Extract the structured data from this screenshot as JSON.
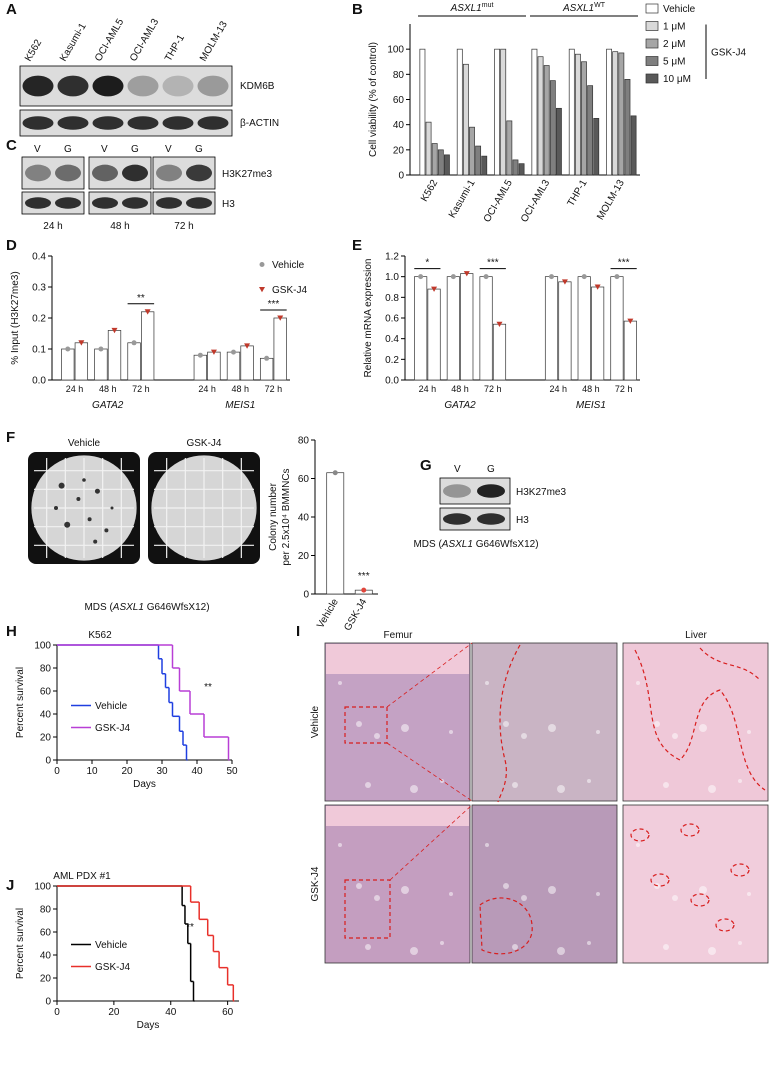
{
  "panel_labels": [
    "A",
    "B",
    "C",
    "D",
    "E",
    "F",
    "G",
    "H",
    "I",
    "J"
  ],
  "blot_a": {
    "lanes": [
      "K562",
      "Kasumi-1",
      "OCI-AML5",
      "OCI-AML3",
      "THP-1",
      "MOLM-13"
    ],
    "rows": [
      "KDM6B",
      "β-ACTIN"
    ]
  },
  "blot_c": {
    "lanes": [
      "V",
      "G",
      "V",
      "G",
      "V",
      "G"
    ],
    "rows": [
      "H3K27me3",
      "H3"
    ],
    "times": [
      "24 h",
      "48 h",
      "72 h"
    ]
  },
  "plates_f": {
    "labels": [
      "Vehicle",
      "GSK-J4"
    ],
    "caption": [
      "MDS (",
      "ASXL1",
      " G646WfsX12)"
    ]
  },
  "blot_g": {
    "lanes": [
      "V",
      "G"
    ],
    "rows": [
      "H3K27me3",
      "H3"
    ],
    "caption": [
      "MDS (",
      "ASXL1",
      " G646WfsX12)"
    ]
  },
  "histology_i": {
    "columns": [
      "Femur",
      "Liver"
    ],
    "rows": [
      "Vehicle",
      "GSK-J4"
    ]
  },
  "chart_data": [
    {
      "type": "bar",
      "ylabel": "Cell viability (% of control)",
      "categories": [
        "K562",
        "Kasumi-1",
        "OCI-AML5",
        "OCI-AML3",
        "THP-1",
        "MOLM-13"
      ],
      "series": [
        {
          "name": "Vehicle",
          "color": "#ffffff",
          "values": [
            100,
            100,
            100,
            100,
            100,
            100
          ]
        },
        {
          "name": "1 μM",
          "color": "#d9d9d9",
          "values": [
            42,
            88,
            100,
            94,
            96,
            98
          ]
        },
        {
          "name": "2 μM",
          "color": "#a6a6a6",
          "values": [
            25,
            38,
            43,
            87,
            90,
            97
          ]
        },
        {
          "name": "5 μM",
          "color": "#7f7f7f",
          "values": [
            20,
            23,
            12,
            75,
            71,
            76
          ]
        },
        {
          "name": "10 μM",
          "color": "#595959",
          "values": [
            16,
            15,
            9,
            53,
            45,
            47
          ]
        }
      ],
      "ylim": [
        0,
        120
      ],
      "yticks": [
        0,
        20,
        40,
        60,
        80,
        100
      ],
      "group_labels": [
        {
          "text": "ASXL1",
          "sup": "mut"
        },
        {
          "text": "ASXL1",
          "sup": "WT"
        }
      ],
      "legend_group": "GSK-J4"
    },
    {
      "type": "bar",
      "ylabel": "% Input (H3K27me3)",
      "categories": [
        "24 h",
        "48 h",
        "72 h",
        "24 h",
        "48 h",
        "72 h"
      ],
      "groups": [
        "GATA2",
        "MEIS1"
      ],
      "bar_fill": "#ffffff",
      "legend": true,
      "series": [
        {
          "name": "Vehicle",
          "color": "#999999",
          "marker": "circle",
          "values": [
            0.1,
            0.1,
            0.12,
            0.08,
            0.09,
            0.07
          ]
        },
        {
          "name": "GSK-J4",
          "color": "#c0392b",
          "marker": "triangle",
          "values": [
            0.12,
            0.16,
            0.22,
            0.09,
            0.11,
            0.2
          ]
        }
      ],
      "ylim": [
        0,
        0.4
      ],
      "yticks": [
        {
          "value": 0,
          "label": "0.0"
        },
        0.1,
        0.2,
        0.3,
        0.4
      ],
      "significance": [
        null,
        null,
        "**",
        null,
        null,
        "***"
      ]
    },
    {
      "type": "bar",
      "ylabel": "Relative mRNA expression",
      "categories": [
        "24 h",
        "48 h",
        "72 h",
        "24 h",
        "48 h",
        "72 h"
      ],
      "groups": [
        "GATA2",
        "MEIS1"
      ],
      "bar_fill": "#ffffff",
      "legend": false,
      "series": [
        {
          "color": "#999999",
          "marker": "circle",
          "values": [
            1,
            1,
            1,
            1,
            1,
            1
          ]
        },
        {
          "color": "#c0392b",
          "marker": "triangle",
          "values": [
            0.88,
            1.03,
            0.54,
            0.95,
            0.9,
            0.57
          ]
        }
      ],
      "ylim": [
        0,
        1.2
      ],
      "yticks": [
        {
          "value": 0,
          "label": "0.0"
        },
        0.2,
        0.4,
        0.6,
        0.8,
        {
          "value": 1,
          "label": "1.0"
        },
        1.2
      ],
      "significance": [
        "*",
        null,
        "***",
        null,
        null,
        "***"
      ]
    },
    {
      "type": "bar",
      "ylabel": [
        "Colony number",
        "per 2.5x10⁴ BMMNCs"
      ],
      "categories": [
        "Vehicle",
        "GSK-J4"
      ],
      "values": [
        63,
        2
      ],
      "bar_fill": "#ffffff",
      "point_colors": [
        "#888888",
        "#e0463c"
      ],
      "ylim": [
        0,
        80
      ],
      "yticks": [
        0,
        20,
        40,
        60,
        80
      ],
      "significance": [
        null,
        "***"
      ]
    },
    {
      "type": "line",
      "step": true,
      "title": "K562",
      "xlabel": "Days",
      "ylabel": "Percent survival",
      "xlim": [
        0,
        50
      ],
      "xticks": [
        0,
        10,
        20,
        30,
        40,
        50
      ],
      "ylim": [
        0,
        100
      ],
      "yticks": [
        0,
        20,
        40,
        60,
        80,
        100
      ],
      "series": [
        {
          "name": "Vehicle",
          "color": "#1f3fe0",
          "x": [
            0,
            29,
            30,
            31,
            32,
            33,
            35,
            36,
            37
          ],
          "values": [
            100,
            88,
            75,
            63,
            50,
            38,
            25,
            13,
            0
          ]
        },
        {
          "name": "GSK-J4",
          "color": "#b83fd6",
          "x": [
            0,
            33,
            35,
            38,
            42,
            49
          ],
          "values": [
            100,
            80,
            60,
            40,
            20,
            0
          ]
        }
      ],
      "annotation": "**"
    },
    {
      "type": "line",
      "step": true,
      "title": "AML PDX #1",
      "xlabel": "Days",
      "ylabel": "Percent survival",
      "xlim": [
        0,
        64
      ],
      "xticks": [
        0,
        20,
        40,
        60
      ],
      "ylim": [
        0,
        100
      ],
      "yticks": [
        0,
        20,
        40,
        60,
        80,
        100
      ],
      "series": [
        {
          "name": "Vehicle",
          "color": "#000000",
          "x": [
            0,
            44,
            45,
            46,
            47,
            48
          ],
          "values": [
            100,
            83,
            67,
            50,
            17,
            0
          ]
        },
        {
          "name": "GSK-J4",
          "color": "#e8302a",
          "x": [
            0,
            47,
            50,
            53,
            55,
            57,
            60,
            62
          ],
          "values": [
            100,
            86,
            71,
            57,
            43,
            29,
            14,
            0
          ]
        }
      ],
      "annotation": "**"
    }
  ]
}
